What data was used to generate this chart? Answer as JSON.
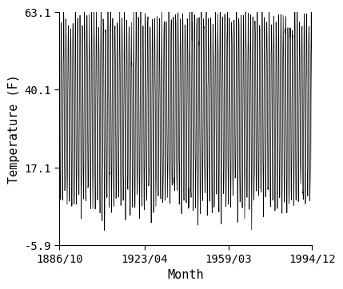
{
  "xlabel": "Month",
  "ylabel": "Temperature (F)",
  "start_year": 1886,
  "start_month": 10,
  "end_year": 1994,
  "end_month": 12,
  "yticks": [
    -5.9,
    17.1,
    40.1,
    63.1
  ],
  "xtick_labels": [
    "1886/10",
    "1923/04",
    "1959/03",
    "1994/12"
  ],
  "ylim": [
    -5.9,
    63.1
  ],
  "mean_annual_temp": 34.0,
  "amplitude": 27.0,
  "noise_std": 3.0,
  "line_color": "#000000",
  "line_width": 0.5,
  "bg_color": "#ffffff",
  "font_family": "monospace",
  "font_size": 10
}
